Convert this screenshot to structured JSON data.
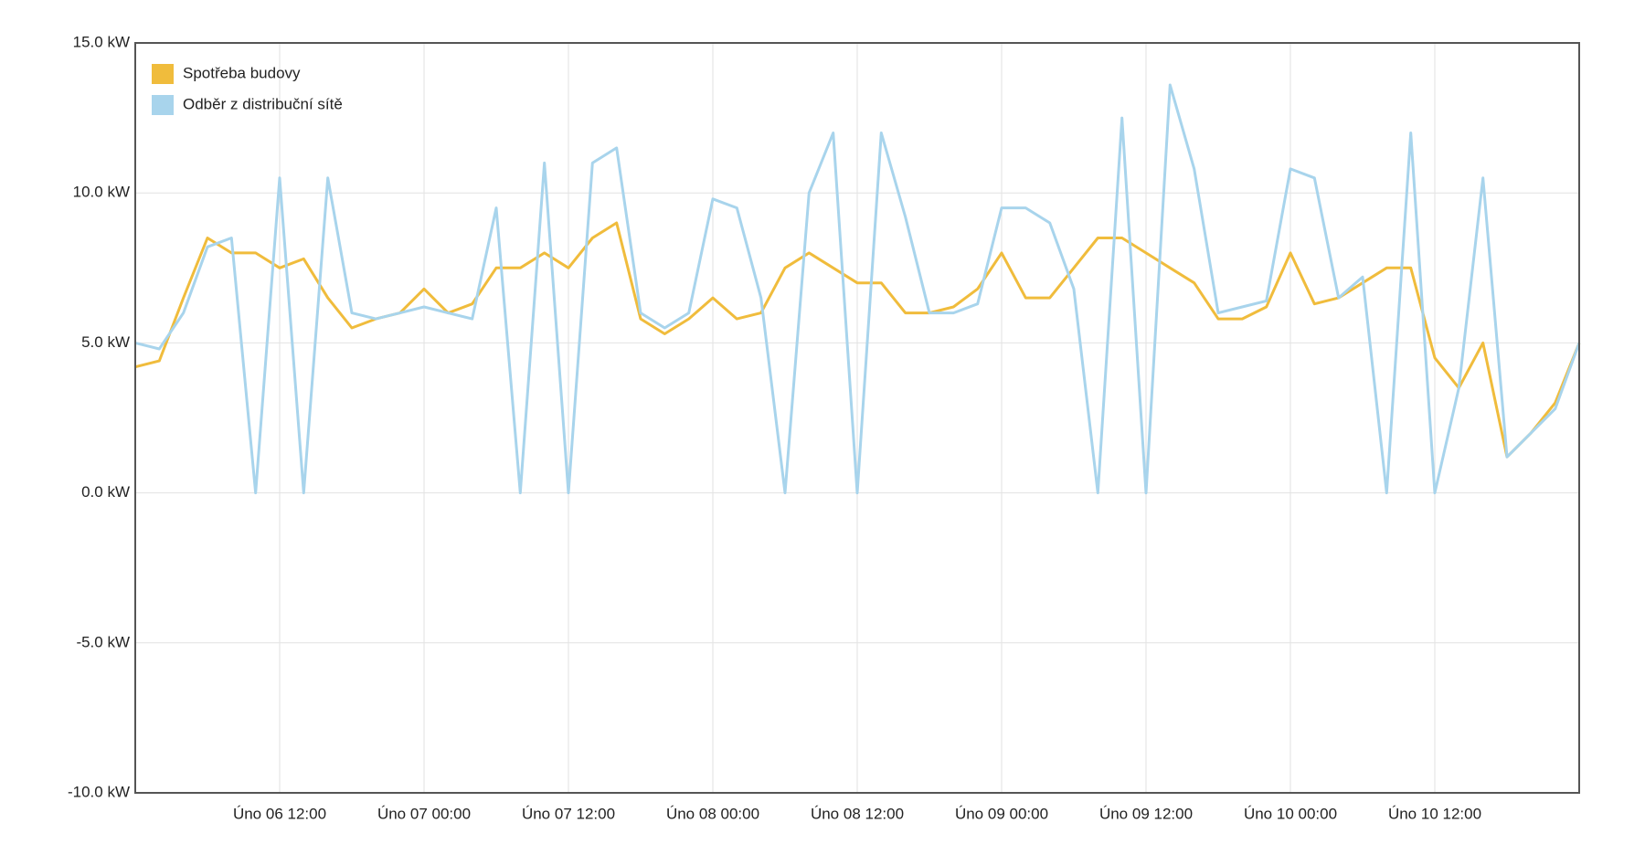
{
  "chart_data": {
    "type": "line",
    "x": [
      "02-06 00:00",
      "02-06 02:00",
      "02-06 04:00",
      "02-06 06:00",
      "02-06 08:00",
      "02-06 10:00",
      "02-06 12:00",
      "02-06 14:00",
      "02-06 16:00",
      "02-06 18:00",
      "02-06 20:00",
      "02-06 22:00",
      "02-07 00:00",
      "02-07 02:00",
      "02-07 04:00",
      "02-07 06:00",
      "02-07 08:00",
      "02-07 10:00",
      "02-07 12:00",
      "02-07 14:00",
      "02-07 16:00",
      "02-07 18:00",
      "02-07 20:00",
      "02-07 22:00",
      "02-08 00:00",
      "02-08 02:00",
      "02-08 04:00",
      "02-08 06:00",
      "02-08 08:00",
      "02-08 10:00",
      "02-08 12:00",
      "02-08 14:00",
      "02-08 16:00",
      "02-08 18:00",
      "02-08 20:00",
      "02-08 22:00",
      "02-09 00:00",
      "02-09 02:00",
      "02-09 04:00",
      "02-09 06:00",
      "02-09 08:00",
      "02-09 10:00",
      "02-09 12:00",
      "02-09 14:00",
      "02-09 16:00",
      "02-09 18:00",
      "02-09 20:00",
      "02-09 22:00",
      "02-10 00:00",
      "02-10 02:00",
      "02-10 04:00",
      "02-10 06:00",
      "02-10 08:00",
      "02-10 10:00",
      "02-10 12:00",
      "02-10 14:00",
      "02-10 16:00",
      "02-10 18:00",
      "02-10 20:00",
      "02-10 22:00",
      "02-11 00:00"
    ],
    "series": [
      {
        "name": "Spotřeba budovy",
        "color": "#f0bc3c",
        "values": [
          4.2,
          4.4,
          6.5,
          8.5,
          8.0,
          8.0,
          7.5,
          7.8,
          6.5,
          5.5,
          5.8,
          6.0,
          6.8,
          6.0,
          6.3,
          7.5,
          7.5,
          8.0,
          7.5,
          8.5,
          9.0,
          5.8,
          5.3,
          5.8,
          6.5,
          5.8,
          6.0,
          7.5,
          8.0,
          7.5,
          7.0,
          7.0,
          6.0,
          6.0,
          6.2,
          6.8,
          8.0,
          6.5,
          6.5,
          7.5,
          8.5,
          8.5,
          8.0,
          7.5,
          7.0,
          5.8,
          5.8,
          6.2,
          8.0,
          6.3,
          6.5,
          7.0,
          7.5,
          7.5,
          4.5,
          3.5,
          5.0,
          1.2,
          2.0,
          3.0,
          5.0
        ]
      },
      {
        "name": "Odběr z distribuční sítě",
        "color": "#a8d4ec",
        "values": [
          5.0,
          4.8,
          6.0,
          8.2,
          8.5,
          0,
          10.5,
          0,
          10.5,
          6.0,
          5.8,
          6.0,
          6.2,
          6.0,
          5.8,
          9.5,
          0,
          11.0,
          0,
          11.0,
          11.5,
          6.0,
          5.5,
          6.0,
          9.8,
          9.5,
          6.5,
          0,
          10.0,
          12.0,
          0,
          12.0,
          9.2,
          6.0,
          6.0,
          6.3,
          9.5,
          9.5,
          9.0,
          6.8,
          0,
          12.5,
          0,
          13.6,
          10.8,
          6.0,
          6.2,
          6.4,
          10.8,
          10.5,
          6.5,
          7.2,
          0,
          12.0,
          0,
          3.5,
          10.5,
          1.2,
          2.0,
          2.8,
          5.0
        ]
      }
    ],
    "xlim": [
      "02-06 00:00",
      "02-11 00:00"
    ],
    "xticks": [
      {
        "value": "02-06 12:00",
        "label": "Úno 06 12:00"
      },
      {
        "value": "02-07 00:00",
        "label": "Úno 07 00:00"
      },
      {
        "value": "02-07 12:00",
        "label": "Úno 07 12:00"
      },
      {
        "value": "02-08 00:00",
        "label": "Úno 08 00:00"
      },
      {
        "value": "02-08 12:00",
        "label": "Úno 08 12:00"
      },
      {
        "value": "02-09 00:00",
        "label": "Úno 09 00:00"
      },
      {
        "value": "02-09 12:00",
        "label": "Úno 09 12:00"
      },
      {
        "value": "02-10 00:00",
        "label": "Úno 10 00:00"
      },
      {
        "value": "02-10 12:00",
        "label": "Úno 10 12:00"
      }
    ],
    "ylim": [
      -10,
      15
    ],
    "yticks": [
      {
        "value": -10,
        "label": "-10.0 kW"
      },
      {
        "value": -5,
        "label": "-5.0 kW"
      },
      {
        "value": 0,
        "label": "0.0 kW"
      },
      {
        "value": 5,
        "label": "5.0 kW"
      },
      {
        "value": 10,
        "label": "10.0 kW"
      },
      {
        "value": 15,
        "label": "15.0 kW"
      }
    ],
    "grid": true,
    "legend": "top-left"
  }
}
